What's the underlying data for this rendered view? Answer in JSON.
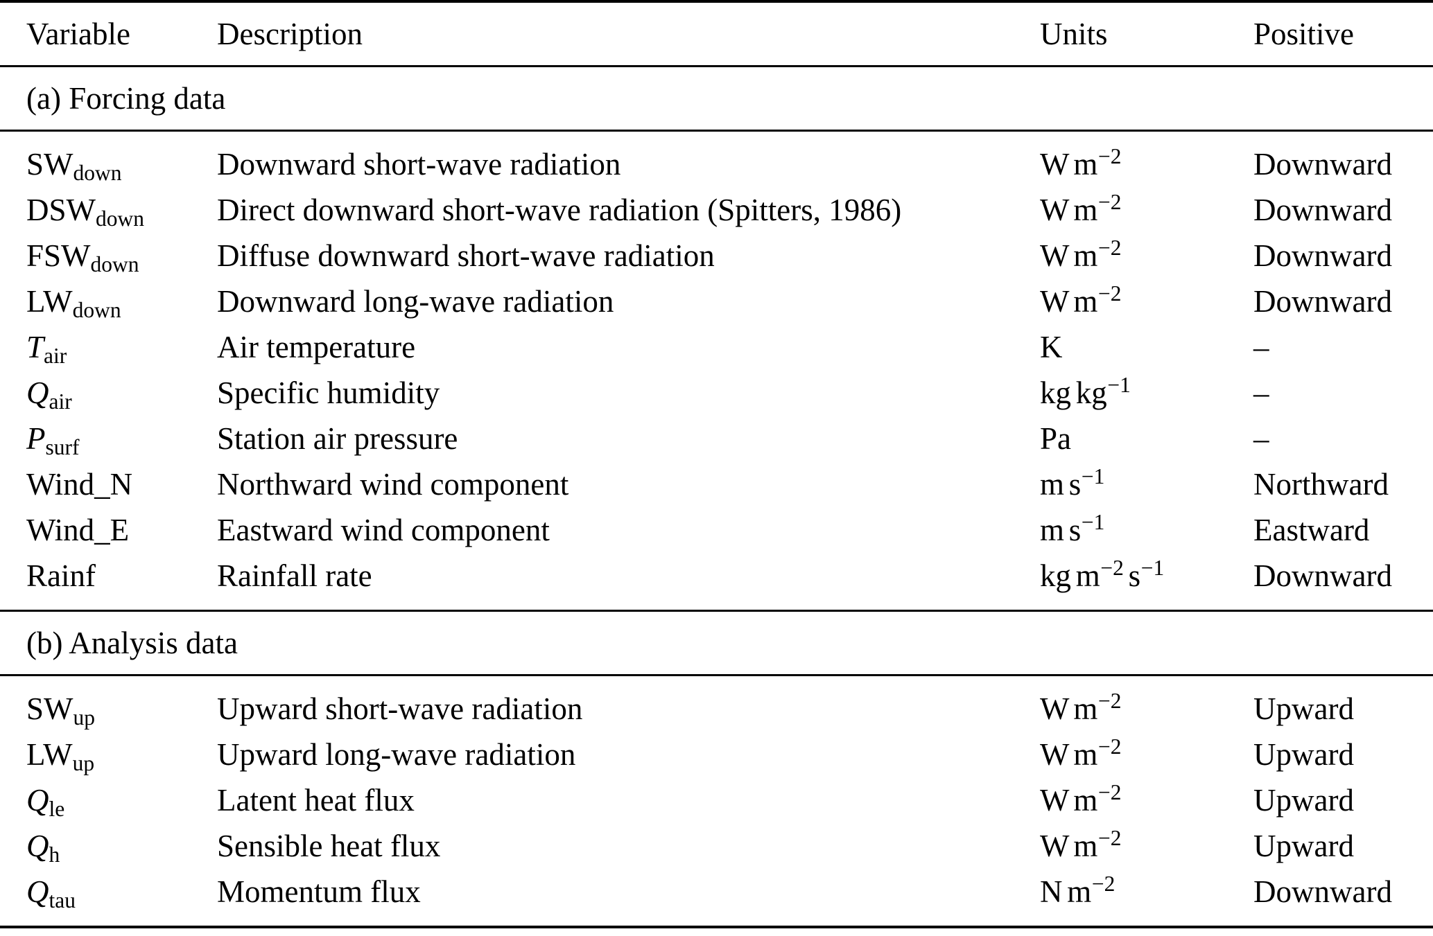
{
  "page": {
    "background_color": "#ffffff",
    "text_color": "#000000"
  },
  "table": {
    "headers": [
      {
        "label": "Variable"
      },
      {
        "label": "Description"
      },
      {
        "label": "Units"
      },
      {
        "label": "Positive"
      }
    ],
    "sections": [
      {
        "title": "(a) Forcing data",
        "rows": [
          {
            "variable": {
              "base": "SW",
              "sub": "down",
              "italic": false
            },
            "description": "Downward short-wave radiation",
            "units": "W m^−2",
            "positive": "Downward"
          },
          {
            "variable": {
              "base": "DSW",
              "sub": "down",
              "italic": false
            },
            "description": "Direct downward short-wave radiation (Spitters, 1986)",
            "units": "W m^−2",
            "positive": "Downward"
          },
          {
            "variable": {
              "base": "FSW",
              "sub": "down",
              "italic": false
            },
            "description": "Diffuse downward short-wave radiation",
            "units": "W m^−2",
            "positive": "Downward"
          },
          {
            "variable": {
              "base": "LW",
              "sub": "down",
              "italic": false
            },
            "description": "Downward long-wave radiation",
            "units": "W m^−2",
            "positive": "Downward"
          },
          {
            "variable": {
              "base": "T",
              "sub": "air",
              "italic": true
            },
            "description": "Air temperature",
            "units": "K",
            "positive": "–"
          },
          {
            "variable": {
              "base": "Q",
              "sub": "air",
              "italic": true
            },
            "description": "Specific humidity",
            "units": "kg kg^−1",
            "positive": "–"
          },
          {
            "variable": {
              "base": "P",
              "sub": "surf",
              "italic": true
            },
            "description": "Station air pressure",
            "units": "Pa",
            "positive": "–"
          },
          {
            "variable": {
              "base": "Wind_N",
              "sub": "",
              "italic": false
            },
            "description": "Northward wind component",
            "units": "m s^−1",
            "positive": "Northward"
          },
          {
            "variable": {
              "base": "Wind_E",
              "sub": "",
              "italic": false
            },
            "description": "Eastward wind component",
            "units": "m s^−1",
            "positive": "Eastward"
          },
          {
            "variable": {
              "base": "Rainf",
              "sub": "",
              "italic": false
            },
            "description": "Rainfall rate",
            "units": "kg m^−2 s^−1",
            "positive": "Downward"
          }
        ]
      },
      {
        "title": "(b) Analysis data",
        "rows": [
          {
            "variable": {
              "base": "SW",
              "sub": "up",
              "italic": false
            },
            "description": "Upward short-wave radiation",
            "units": "W m^−2",
            "positive": "Upward"
          },
          {
            "variable": {
              "base": "LW",
              "sub": "up",
              "italic": false
            },
            "description": "Upward long-wave radiation",
            "units": "W m^−2",
            "positive": "Upward"
          },
          {
            "variable": {
              "base": "Q",
              "sub": "le",
              "italic": true
            },
            "description": "Latent heat flux",
            "units": "W m^−2",
            "positive": "Upward"
          },
          {
            "variable": {
              "base": "Q",
              "sub": "h",
              "italic": true
            },
            "description": "Sensible heat flux",
            "units": "W m^−2",
            "positive": "Upward"
          },
          {
            "variable": {
              "base": "Q",
              "sub": "tau",
              "italic": true
            },
            "description": "Momentum flux",
            "units": "N m^−2",
            "positive": "Downward"
          }
        ]
      }
    ]
  }
}
